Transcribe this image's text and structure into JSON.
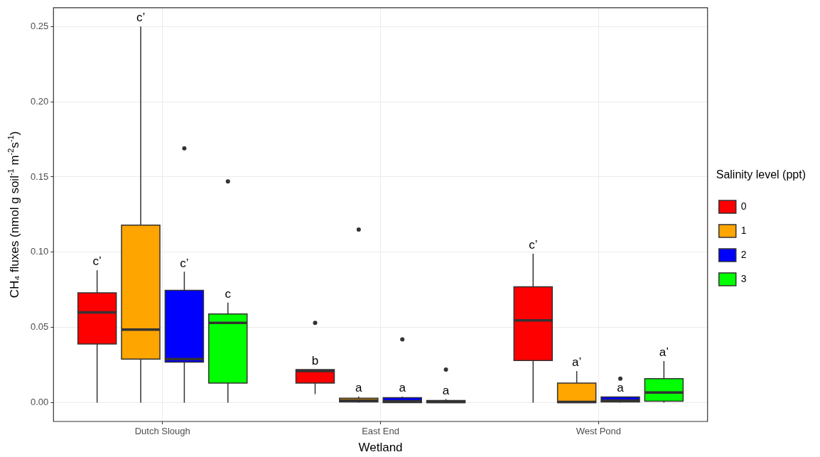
{
  "chart_data": {
    "type": "box",
    "xlabel": "Wetland",
    "ylabel": "CH₄ fluxes (nmol g soil$^{-1}$ m$^{-2}$s$^{-1}$)",
    "legend_title": "Salinity level (ppt)",
    "legend": "right",
    "grid": true,
    "categories": [
      "Dutch Slough",
      "East End",
      "West Pond"
    ],
    "ylim": [
      -0.0125,
      0.2625
    ],
    "yticks": [
      {
        "value": 0,
        "label": "0.00"
      },
      {
        "value": 0.05,
        "label": "0.05"
      },
      {
        "value": 0.1,
        "label": "0.10"
      },
      {
        "value": 0.15,
        "label": "0.15"
      },
      {
        "value": 0.2,
        "label": "0.20"
      },
      {
        "value": 0.25,
        "label": "0.25"
      }
    ],
    "series": [
      {
        "name": "0",
        "color": "#ff0000",
        "value_labels": [
          "c’",
          "b",
          "c’"
        ],
        "boxes": [
          {
            "low": 0,
            "q1": 0.039,
            "median": 0.06,
            "q3": 0.073,
            "high": 0.088
          },
          {
            "low": 0.0057,
            "q1": 0.013,
            "median": 0.021,
            "q3": 0.022,
            "high": 0.022,
            "outliers": [
              0.053
            ]
          },
          {
            "low": 0,
            "q1": 0.028,
            "median": 0.0547,
            "q3": 0.077,
            "high": 0.099
          }
        ]
      },
      {
        "name": "1",
        "color": "#ffa500",
        "value_labels": [
          "c’",
          "a",
          "a’"
        ],
        "boxes": [
          {
            "low": 0,
            "q1": 0.029,
            "median": 0.0485,
            "q3": 0.118,
            "high": 0.25
          },
          {
            "low": 0,
            "q1": 0.0005,
            "median": 0.0014,
            "q3": 0.003,
            "high": 0.004,
            "outliers": [
              0.115
            ]
          },
          {
            "low": 0,
            "q1": 0,
            "median": 0.0005,
            "q3": 0.013,
            "high": 0.021
          }
        ]
      },
      {
        "name": "2",
        "color": "#0000ff",
        "value_labels": [
          "c’",
          "a",
          "a"
        ],
        "boxes": [
          {
            "low": 0,
            "q1": 0.027,
            "median": 0.029,
            "q3": 0.0746,
            "high": 0.087,
            "outliers": [
              0.169
            ]
          },
          {
            "low": 0,
            "q1": 0,
            "median": 0.001,
            "q3": 0.0033,
            "high": 0.004,
            "outliers": [
              0.042
            ]
          },
          {
            "low": 0,
            "q1": 0.0005,
            "median": 0.0014,
            "q3": 0.0038,
            "high": 0.004,
            "outliers": [
              0.016
            ]
          }
        ]
      },
      {
        "name": "3",
        "color": "#00ff00",
        "value_labels": [
          "c",
          "a",
          "a’"
        ],
        "boxes": [
          {
            "low": 0,
            "q1": 0.013,
            "median": 0.053,
            "q3": 0.059,
            "high": 0.0665,
            "outliers": [
              0.147
            ]
          },
          {
            "low": 0,
            "q1": 0,
            "median": 0.0005,
            "q3": 0.0014,
            "high": 0.0024,
            "outliers": [
              0.022
            ]
          },
          {
            "low": 0,
            "q1": 0.001,
            "median": 0.0067,
            "q3": 0.016,
            "high": 0.0276
          }
        ]
      }
    ]
  }
}
